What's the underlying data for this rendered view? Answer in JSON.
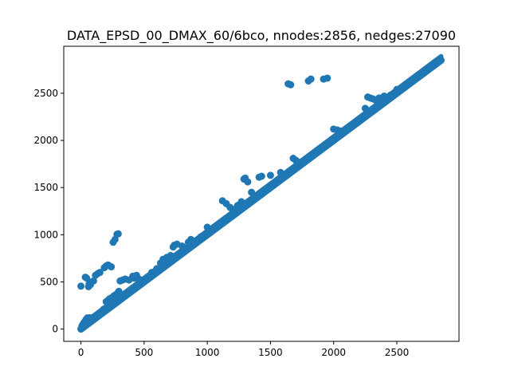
{
  "chart_data": {
    "type": "scatter",
    "title": "DATA_EPSD_00_DMAX_60/6bco, nnodes:2856, nedges:27090",
    "xlabel": "",
    "ylabel": "",
    "xlim": [
      -136,
      2992
    ],
    "ylim": [
      -130,
      2998
    ],
    "xticks": [
      0,
      500,
      1000,
      1500,
      2000,
      2500
    ],
    "yticks": [
      0,
      500,
      1000,
      1500,
      2000,
      2500
    ],
    "xtick_labels": [
      "0",
      "500",
      "1000",
      "1500",
      "2000",
      "2500"
    ],
    "ytick_labels": [
      "0",
      "500",
      "1000",
      "1500",
      "2000",
      "2500"
    ],
    "grid": false,
    "marker_color": "#1f77b4",
    "diagonal": {
      "from": 0,
      "to": 2850,
      "band": 40
    },
    "points": [
      [
        5,
        15
      ],
      [
        12,
        40
      ],
      [
        20,
        60
      ],
      [
        30,
        80
      ],
      [
        40,
        100
      ],
      [
        50,
        118
      ],
      [
        60,
        110
      ],
      [
        70,
        120
      ],
      [
        80,
        105
      ],
      [
        100,
        120
      ],
      [
        120,
        140
      ],
      [
        150,
        170
      ],
      [
        180,
        210
      ],
      [
        200,
        290
      ],
      [
        210,
        300
      ],
      [
        225,
        320
      ],
      [
        240,
        330
      ],
      [
        260,
        350
      ],
      [
        270,
        360
      ],
      [
        290,
        380
      ],
      [
        300,
        400
      ],
      [
        0,
        455
      ],
      [
        35,
        550
      ],
      [
        45,
        540
      ],
      [
        60,
        450
      ],
      [
        65,
        480
      ],
      [
        75,
        470
      ],
      [
        85,
        500
      ],
      [
        100,
        510
      ],
      [
        115,
        570
      ],
      [
        135,
        590
      ],
      [
        150,
        600
      ],
      [
        185,
        650
      ],
      [
        200,
        670
      ],
      [
        215,
        680
      ],
      [
        240,
        660
      ],
      [
        255,
        920
      ],
      [
        270,
        950
      ],
      [
        285,
        1005
      ],
      [
        295,
        1010
      ],
      [
        310,
        510
      ],
      [
        330,
        520
      ],
      [
        350,
        530
      ],
      [
        380,
        520
      ],
      [
        410,
        560
      ],
      [
        420,
        540
      ],
      [
        440,
        570
      ],
      [
        460,
        530
      ],
      [
        560,
        600
      ],
      [
        600,
        640
      ],
      [
        630,
        700
      ],
      [
        650,
        740
      ],
      [
        680,
        760
      ],
      [
        710,
        780
      ],
      [
        730,
        870
      ],
      [
        740,
        890
      ],
      [
        760,
        900
      ],
      [
        800,
        880
      ],
      [
        850,
        920
      ],
      [
        870,
        950
      ],
      [
        900,
        930
      ],
      [
        950,
        980
      ],
      [
        1000,
        1080
      ],
      [
        1100,
        1120
      ],
      [
        1120,
        1360
      ],
      [
        1150,
        1330
      ],
      [
        1180,
        1290
      ],
      [
        1200,
        1270
      ],
      [
        1240,
        1310
      ],
      [
        1270,
        1350
      ],
      [
        1290,
        1590
      ],
      [
        1300,
        1600
      ],
      [
        1320,
        1560
      ],
      [
        1350,
        1450
      ],
      [
        1410,
        1610
      ],
      [
        1430,
        1620
      ],
      [
        1500,
        1630
      ],
      [
        1580,
        1660
      ],
      [
        1640,
        2600
      ],
      [
        1660,
        2590
      ],
      [
        1680,
        1810
      ],
      [
        1700,
        1790
      ],
      [
        1720,
        1770
      ],
      [
        1800,
        2630
      ],
      [
        1820,
        2650
      ],
      [
        1920,
        2650
      ],
      [
        1950,
        2660
      ],
      [
        2000,
        2120
      ],
      [
        2030,
        2110
      ],
      [
        2060,
        2100
      ],
      [
        2250,
        2340
      ],
      [
        2270,
        2460
      ],
      [
        2290,
        2450
      ],
      [
        2310,
        2440
      ],
      [
        2330,
        2430
      ],
      [
        2360,
        2450
      ],
      [
        2400,
        2470
      ],
      [
        2450,
        2480
      ],
      [
        2500,
        2540
      ]
    ]
  }
}
